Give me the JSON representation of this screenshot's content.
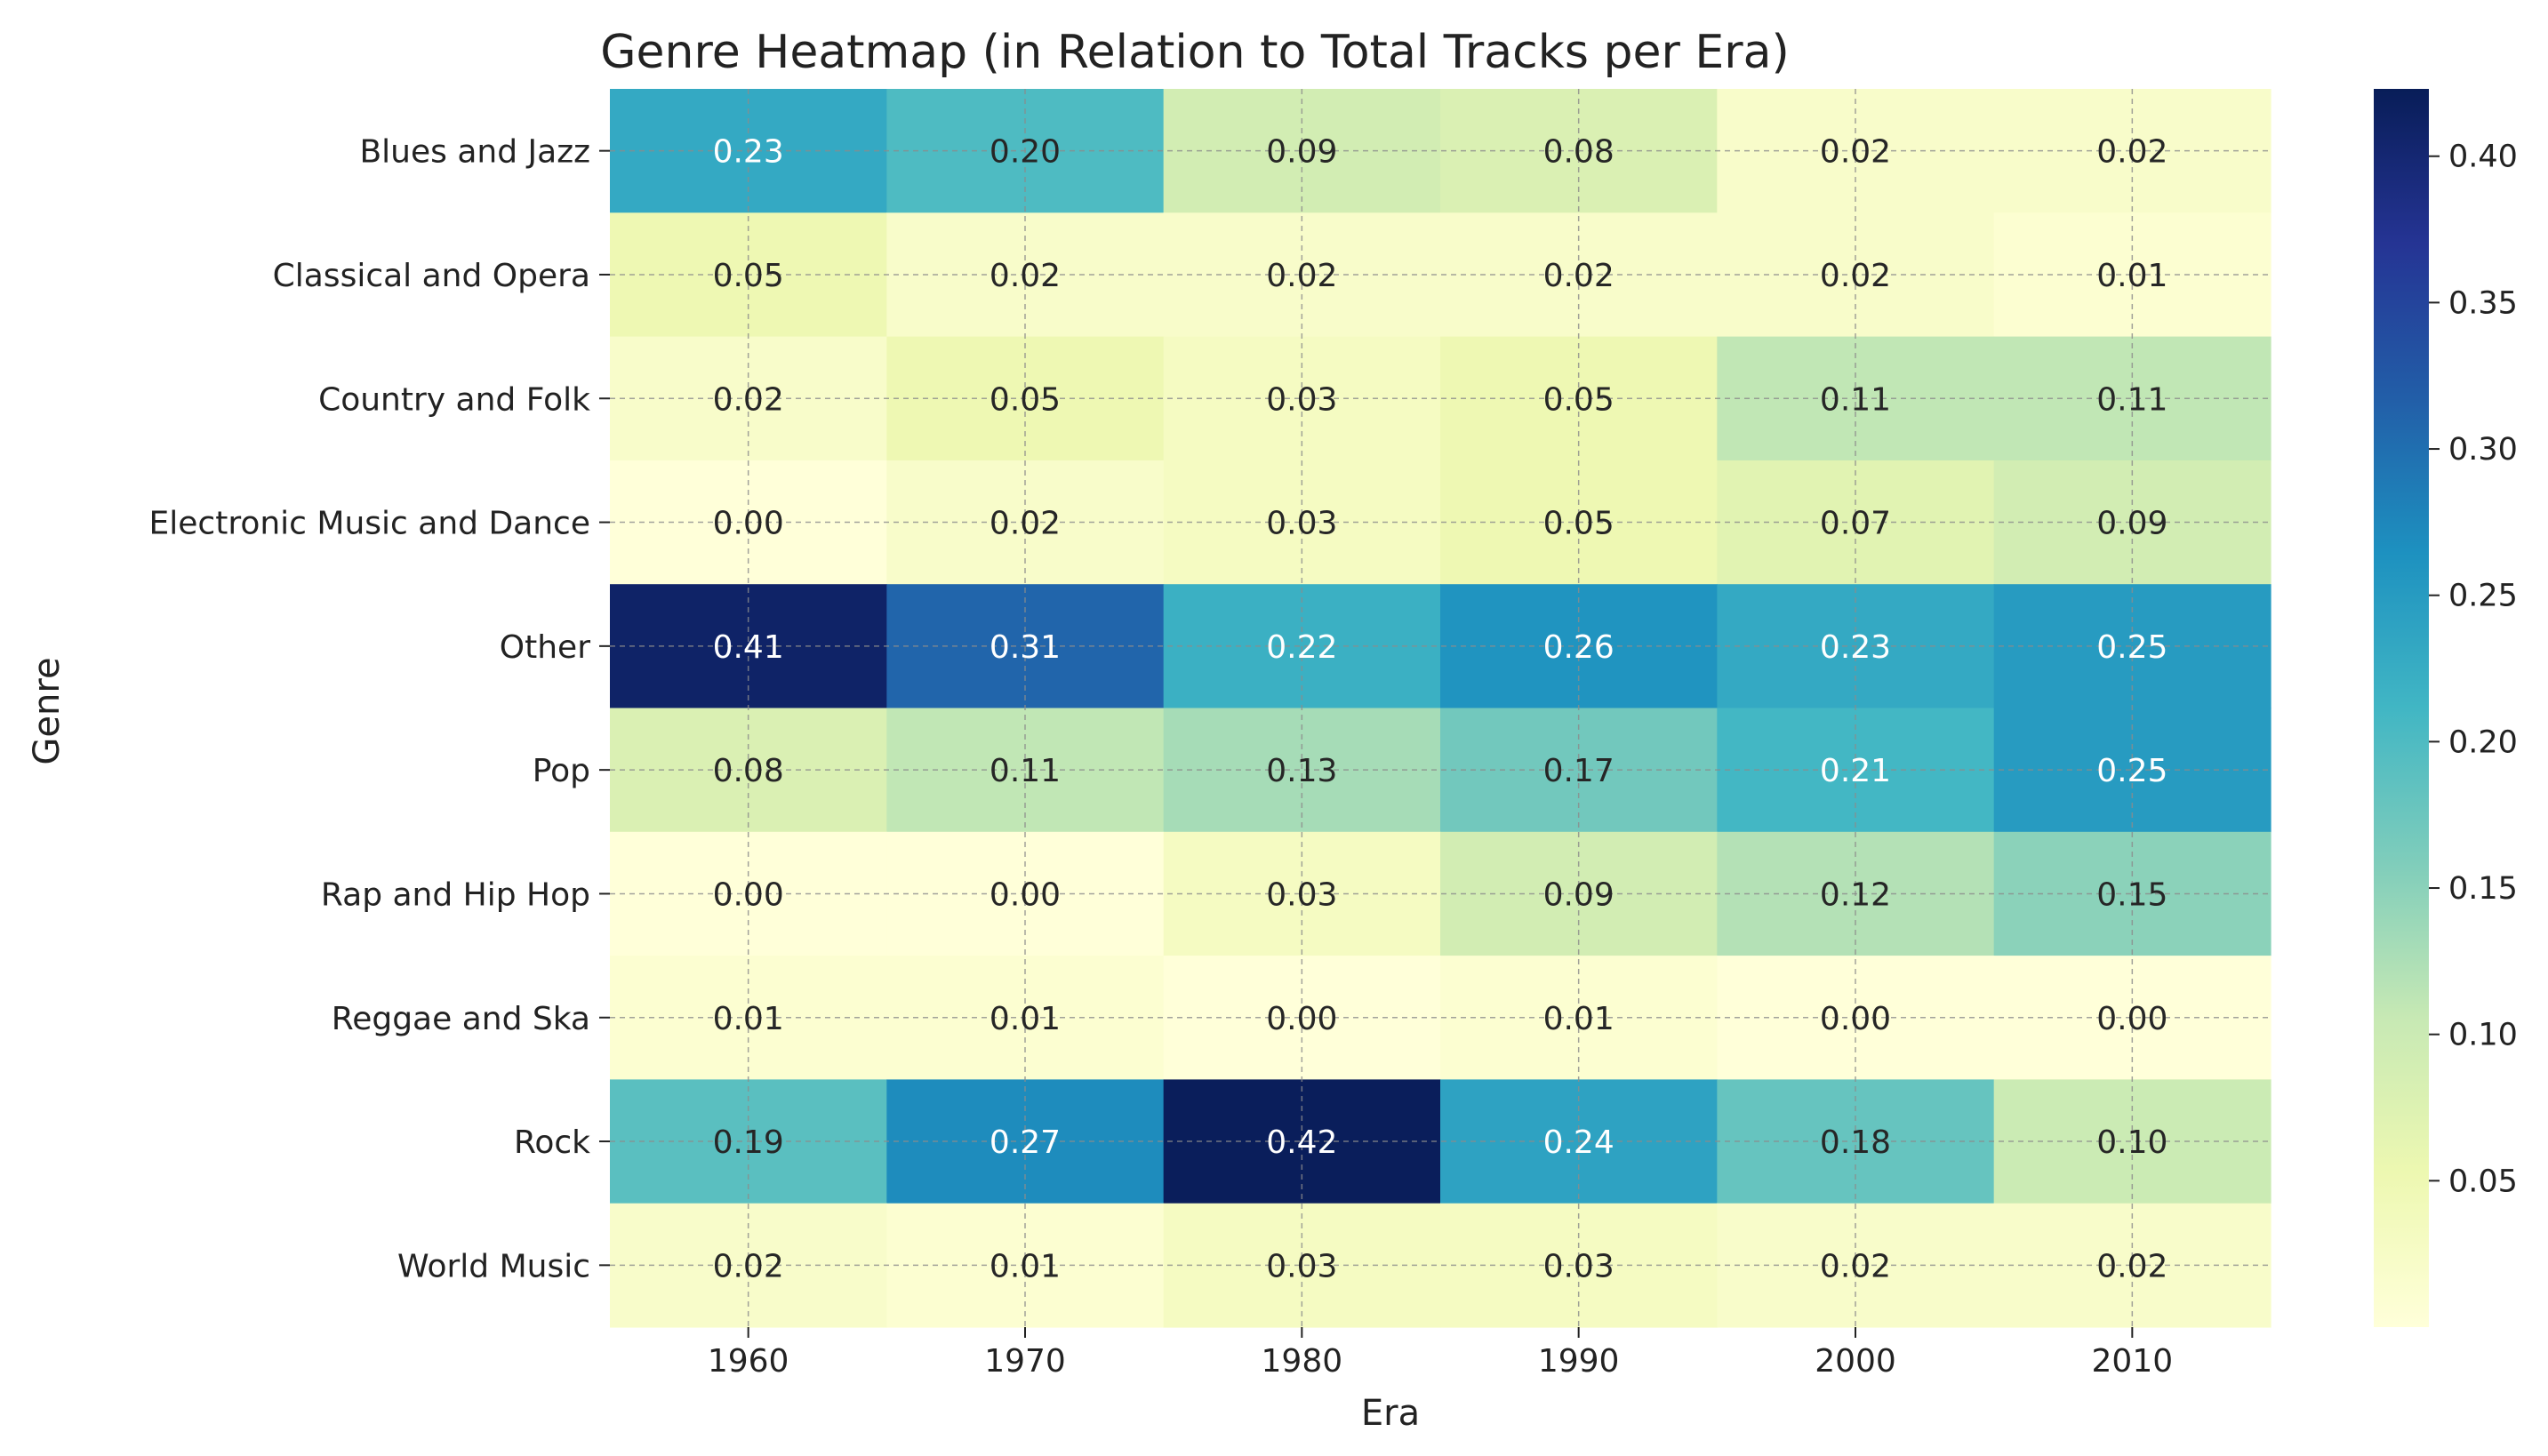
{
  "chart_data": {
    "type": "heatmap",
    "title": "Genre Heatmap (in Relation to Total Tracks per Era)",
    "xlabel": "Era",
    "ylabel": "Genre",
    "x": [
      "1960",
      "1970",
      "1980",
      "1990",
      "2000",
      "2010"
    ],
    "y": [
      "Blues and Jazz",
      "Classical and Opera",
      "Country and Folk",
      "Electronic Music and Dance",
      "Other",
      "Pop",
      "Rap and Hip Hop",
      "Reggae and Ska",
      "Rock",
      "World Music"
    ],
    "values": [
      [
        0.23,
        0.2,
        0.09,
        0.08,
        0.02,
        0.02
      ],
      [
        0.05,
        0.02,
        0.02,
        0.02,
        0.02,
        0.01
      ],
      [
        0.02,
        0.05,
        0.03,
        0.05,
        0.11,
        0.11
      ],
      [
        0.0,
        0.02,
        0.03,
        0.05,
        0.07,
        0.09
      ],
      [
        0.41,
        0.31,
        0.22,
        0.26,
        0.23,
        0.25
      ],
      [
        0.08,
        0.11,
        0.13,
        0.17,
        0.21,
        0.25
      ],
      [
        0.0,
        0.0,
        0.03,
        0.09,
        0.12,
        0.15
      ],
      [
        0.01,
        0.01,
        0.0,
        0.01,
        0.0,
        0.0
      ],
      [
        0.19,
        0.27,
        0.42,
        0.24,
        0.18,
        0.1
      ],
      [
        0.02,
        0.01,
        0.03,
        0.03,
        0.02,
        0.02
      ]
    ],
    "colormap": "YlGnBu",
    "colorbar": {
      "min": 0.0,
      "max": 0.423,
      "ticks": [
        "0.05",
        "0.10",
        "0.15",
        "0.20",
        "0.25",
        "0.30",
        "0.35",
        "0.40"
      ]
    },
    "grid": true,
    "annotation_format": "2 decimals"
  }
}
